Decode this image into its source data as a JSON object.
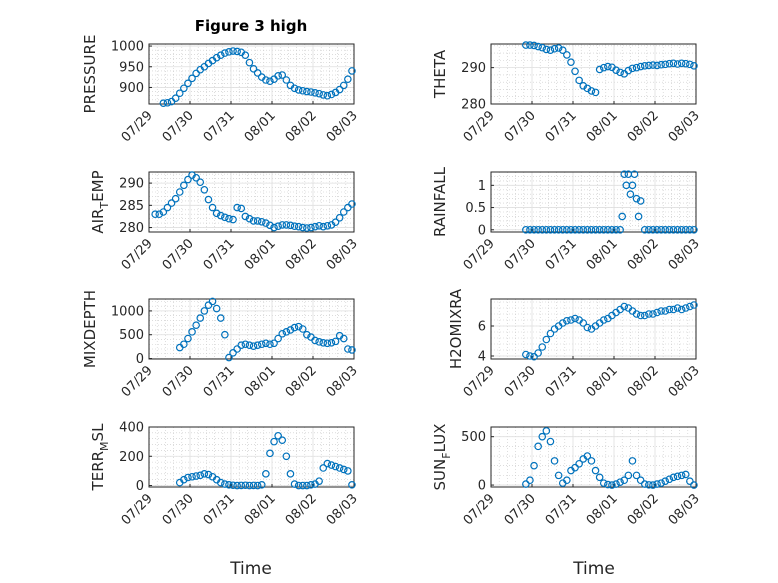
{
  "figure": {
    "title": "Figure 3 high",
    "xlabel": "Time"
  },
  "chart_data": [
    {
      "type": "scatter",
      "ylabel": "PRESSURE",
      "xticks": [
        "07/29",
        "07/30",
        "07/31",
        "08/01",
        "08/02",
        "08/03"
      ],
      "ylim": [
        860,
        1005
      ],
      "yticks": [
        900,
        950,
        1000
      ],
      "series": [
        {
          "color": "#0072bd",
          "x": [
            0.35,
            0.45,
            0.55,
            0.65,
            0.75,
            0.85,
            0.95,
            1.05,
            1.15,
            1.25,
            1.35,
            1.45,
            1.55,
            1.65,
            1.75,
            1.85,
            1.95,
            2.05,
            2.15,
            2.25,
            2.35,
            2.45,
            2.55,
            2.65,
            2.75,
            2.85,
            2.95,
            3.05,
            3.15,
            3.25,
            3.35,
            3.45,
            3.55,
            3.65,
            3.75,
            3.85,
            3.95,
            4.05,
            4.15,
            4.25,
            4.35,
            4.45,
            4.55,
            4.65,
            4.75,
            4.85,
            4.95
          ],
          "y": [
            862,
            863,
            866,
            874,
            886,
            898,
            910,
            922,
            934,
            943,
            950,
            958,
            965,
            972,
            978,
            983,
            986,
            988,
            987,
            985,
            978,
            960,
            945,
            935,
            925,
            918,
            915,
            920,
            928,
            930,
            918,
            905,
            898,
            894,
            892,
            890,
            889,
            887,
            885,
            882,
            880,
            883,
            888,
            895,
            905,
            920,
            940
          ]
        }
      ]
    },
    {
      "type": "scatter",
      "ylabel": "THETA",
      "xticks": [
        "07/29",
        "07/30",
        "07/31",
        "08/01",
        "08/02",
        "08/03"
      ],
      "ylim": [
        280,
        296.5
      ],
      "yticks": [
        280,
        290
      ],
      "series": [
        {
          "color": "#0072bd",
          "x": [
            0.85,
            0.95,
            1.05,
            1.15,
            1.25,
            1.35,
            1.45,
            1.55,
            1.65,
            1.75,
            1.85,
            1.95,
            2.05,
            2.15,
            2.25,
            2.35,
            2.45,
            2.55,
            2.65,
            2.75,
            2.85,
            2.95,
            3.05,
            3.15,
            3.25,
            3.35,
            3.45,
            3.55,
            3.65,
            3.75,
            3.85,
            3.95,
            4.05,
            4.15,
            4.25,
            4.35,
            4.45,
            4.55,
            4.65,
            4.75,
            4.85,
            4.95
          ],
          "y": [
            296.2,
            296.2,
            296.1,
            295.8,
            295.5,
            295.0,
            294.8,
            295.2,
            295.4,
            294.8,
            293.5,
            291.5,
            289.0,
            286.5,
            285.0,
            284.3,
            283.6,
            283.2,
            289.5,
            290.0,
            290.3,
            290.1,
            289.3,
            288.7,
            288.3,
            289.2,
            289.8,
            290.0,
            290.3,
            290.5,
            290.6,
            290.7,
            290.6,
            290.8,
            290.9,
            291.1,
            291.2,
            291.0,
            291.2,
            291.1,
            290.9,
            290.5
          ]
        }
      ]
    },
    {
      "type": "scatter",
      "ylabel": "AIR_TEMP",
      "ylabel_main": "AIR",
      "ylabel_sub": "T",
      "ylabel_rest": "EMP",
      "xticks": [
        "07/29",
        "07/30",
        "07/31",
        "08/01",
        "08/02",
        "08/03"
      ],
      "ylim": [
        279,
        292.5
      ],
      "yticks": [
        280,
        285,
        290
      ],
      "series": [
        {
          "color": "#0072bd",
          "x": [
            0.15,
            0.25,
            0.35,
            0.45,
            0.55,
            0.65,
            0.75,
            0.85,
            0.95,
            1.05,
            1.15,
            1.25,
            1.35,
            1.45,
            1.55,
            1.65,
            1.75,
            1.85,
            1.95,
            2.05,
            2.15,
            2.25,
            2.35,
            2.45,
            2.55,
            2.65,
            2.75,
            2.85,
            2.95,
            3.05,
            3.15,
            3.25,
            3.35,
            3.45,
            3.55,
            3.65,
            3.75,
            3.85,
            3.95,
            4.05,
            4.15,
            4.25,
            4.35,
            4.45,
            4.55,
            4.65,
            4.75,
            4.85,
            4.95
          ],
          "y": [
            283.0,
            283.0,
            283.5,
            284.5,
            285.5,
            286.5,
            288.0,
            289.5,
            290.8,
            291.8,
            291.2,
            290.2,
            288.5,
            286.3,
            284.5,
            283.2,
            282.7,
            282.3,
            282.0,
            281.8,
            284.5,
            284.3,
            282.5,
            282.0,
            281.5,
            281.5,
            281.3,
            281.0,
            280.5,
            280.0,
            280.3,
            280.6,
            280.6,
            280.5,
            280.3,
            280.2,
            280.0,
            279.9,
            280.0,
            280.2,
            280.4,
            280.2,
            280.4,
            280.6,
            281.2,
            282.2,
            283.5,
            284.5,
            285.3
          ]
        }
      ]
    },
    {
      "type": "scatter",
      "ylabel": "RAINFALL",
      "xticks": [
        "07/29",
        "07/30",
        "07/31",
        "08/01",
        "08/02",
        "08/03"
      ],
      "ylim": [
        -0.05,
        1.3
      ],
      "yticks": [
        0,
        0.5,
        1
      ],
      "series": [
        {
          "color": "#0072bd",
          "x": [
            0.85,
            0.95,
            1.05,
            1.15,
            1.25,
            1.35,
            1.45,
            1.55,
            1.65,
            1.75,
            1.85,
            1.95,
            2.05,
            2.15,
            2.25,
            2.35,
            2.45,
            2.55,
            2.65,
            2.75,
            2.85,
            2.95,
            3.05,
            3.15,
            3.2,
            3.25,
            3.3,
            3.35,
            3.4,
            3.45,
            3.5,
            3.55,
            3.6,
            3.65,
            3.75,
            3.85,
            3.95,
            4.05,
            4.15,
            4.25,
            4.35,
            4.45,
            4.55,
            4.65,
            4.75,
            4.85,
            4.95
          ],
          "y": [
            0,
            0,
            0,
            0,
            0,
            0,
            0,
            0,
            0,
            0,
            0,
            0,
            0,
            0,
            0,
            0,
            0,
            0,
            0,
            0,
            0,
            0,
            0,
            0,
            0.3,
            1.25,
            1.0,
            1.25,
            0.8,
            1.0,
            1.25,
            0.7,
            0.3,
            0.65,
            0,
            0,
            0,
            0,
            0,
            0,
            0,
            0,
            0,
            0,
            0,
            0,
            0
          ]
        }
      ]
    },
    {
      "type": "scatter",
      "ylabel": "MIXDEPTH",
      "xticks": [
        "07/29",
        "07/30",
        "07/31",
        "08/01",
        "08/02",
        "08/03"
      ],
      "ylim": [
        -10,
        1250
      ],
      "yticks": [
        0,
        500,
        1000
      ],
      "series": [
        {
          "color": "#0072bd",
          "x": [
            0.75,
            0.85,
            0.95,
            1.05,
            1.15,
            1.25,
            1.35,
            1.45,
            1.55,
            1.65,
            1.75,
            1.85,
            1.95,
            2.05,
            2.15,
            2.25,
            2.35,
            2.45,
            2.55,
            2.65,
            2.75,
            2.85,
            2.95,
            3.05,
            3.15,
            3.25,
            3.35,
            3.45,
            3.55,
            3.65,
            3.75,
            3.85,
            3.95,
            4.05,
            4.15,
            4.25,
            4.35,
            4.45,
            4.55,
            4.65,
            4.75,
            4.85,
            4.95
          ],
          "y": [
            230,
            300,
            420,
            560,
            700,
            850,
            1000,
            1120,
            1200,
            1050,
            850,
            500,
            20,
            120,
            200,
            280,
            300,
            280,
            260,
            280,
            300,
            320,
            300,
            320,
            420,
            520,
            560,
            600,
            650,
            670,
            620,
            500,
            450,
            380,
            350,
            330,
            320,
            330,
            360,
            480,
            420,
            200,
            180
          ]
        }
      ]
    },
    {
      "type": "scatter",
      "ylabel": "H2OMIXRA",
      "xticks": [
        "07/29",
        "07/30",
        "07/31",
        "08/01",
        "08/02",
        "08/03"
      ],
      "ylim": [
        3.8,
        7.8
      ],
      "yticks": [
        4,
        6
      ],
      "series": [
        {
          "color": "#0072bd",
          "x": [
            0.85,
            0.95,
            1.05,
            1.15,
            1.25,
            1.35,
            1.45,
            1.55,
            1.65,
            1.75,
            1.85,
            1.95,
            2.05,
            2.15,
            2.25,
            2.35,
            2.45,
            2.55,
            2.65,
            2.75,
            2.85,
            2.95,
            3.05,
            3.15,
            3.25,
            3.35,
            3.45,
            3.55,
            3.65,
            3.75,
            3.85,
            3.95,
            4.05,
            4.15,
            4.25,
            4.35,
            4.45,
            4.55,
            4.65,
            4.75,
            4.85,
            4.95
          ],
          "y": [
            4.1,
            4.0,
            3.95,
            4.2,
            4.6,
            5.1,
            5.5,
            5.8,
            6.0,
            6.2,
            6.35,
            6.4,
            6.5,
            6.4,
            6.2,
            5.9,
            5.8,
            6.0,
            6.2,
            6.4,
            6.5,
            6.7,
            6.9,
            7.1,
            7.3,
            7.2,
            7.0,
            6.8,
            6.7,
            6.7,
            6.8,
            6.8,
            6.9,
            7.0,
            7.0,
            7.1,
            7.1,
            7.2,
            7.1,
            7.2,
            7.3,
            7.4
          ]
        }
      ]
    },
    {
      "type": "scatter",
      "ylabel": "TERR_MSL",
      "ylabel_main": "TERR",
      "ylabel_sub": "M",
      "ylabel_rest": "SL",
      "xticks": [
        "07/29",
        "07/30",
        "07/31",
        "08/01",
        "08/02",
        "08/03"
      ],
      "ylim": [
        -10,
        400
      ],
      "yticks": [
        0,
        200,
        400
      ],
      "series": [
        {
          "color": "#0072bd",
          "x": [
            0.75,
            0.85,
            0.95,
            1.05,
            1.15,
            1.25,
            1.35,
            1.45,
            1.55,
            1.65,
            1.75,
            1.85,
            1.95,
            2.05,
            2.15,
            2.25,
            2.35,
            2.45,
            2.55,
            2.65,
            2.75,
            2.85,
            2.95,
            3.05,
            3.15,
            3.25,
            3.35,
            3.45,
            3.55,
            3.65,
            3.75,
            3.85,
            3.95,
            4.05,
            4.15,
            4.25,
            4.35,
            4.45,
            4.55,
            4.65,
            4.75,
            4.85,
            4.95
          ],
          "y": [
            20,
            40,
            55,
            60,
            65,
            70,
            80,
            75,
            60,
            40,
            20,
            10,
            5,
            2,
            0,
            1,
            2,
            0,
            1,
            0,
            5,
            80,
            220,
            300,
            340,
            310,
            200,
            80,
            10,
            0,
            0,
            0,
            5,
            10,
            30,
            120,
            150,
            140,
            130,
            120,
            110,
            100,
            5
          ]
        }
      ]
    },
    {
      "type": "scatter",
      "ylabel": "SUN_FLUX",
      "ylabel_main": "SUN",
      "ylabel_sub": "F",
      "ylabel_rest": "LUX",
      "xticks": [
        "07/29",
        "07/30",
        "07/31",
        "08/01",
        "08/02",
        "08/03"
      ],
      "ylim": [
        -20,
        600
      ],
      "yticks": [
        0,
        500
      ],
      "series": [
        {
          "color": "#0072bd",
          "x": [
            0.85,
            0.95,
            1.05,
            1.15,
            1.25,
            1.35,
            1.45,
            1.55,
            1.65,
            1.75,
            1.85,
            1.95,
            2.05,
            2.15,
            2.25,
            2.35,
            2.45,
            2.55,
            2.65,
            2.75,
            2.85,
            2.95,
            3.05,
            3.15,
            3.25,
            3.35,
            3.45,
            3.55,
            3.65,
            3.75,
            3.85,
            3.95,
            4.05,
            4.15,
            4.25,
            4.35,
            4.45,
            4.55,
            4.65,
            4.75,
            4.85,
            4.95
          ],
          "y": [
            10,
            50,
            200,
            400,
            500,
            560,
            450,
            250,
            100,
            20,
            50,
            150,
            180,
            220,
            270,
            300,
            250,
            150,
            80,
            20,
            5,
            0,
            10,
            30,
            50,
            100,
            250,
            100,
            50,
            10,
            2,
            0,
            10,
            20,
            40,
            60,
            80,
            90,
            100,
            110,
            40,
            0
          ]
        }
      ]
    }
  ]
}
